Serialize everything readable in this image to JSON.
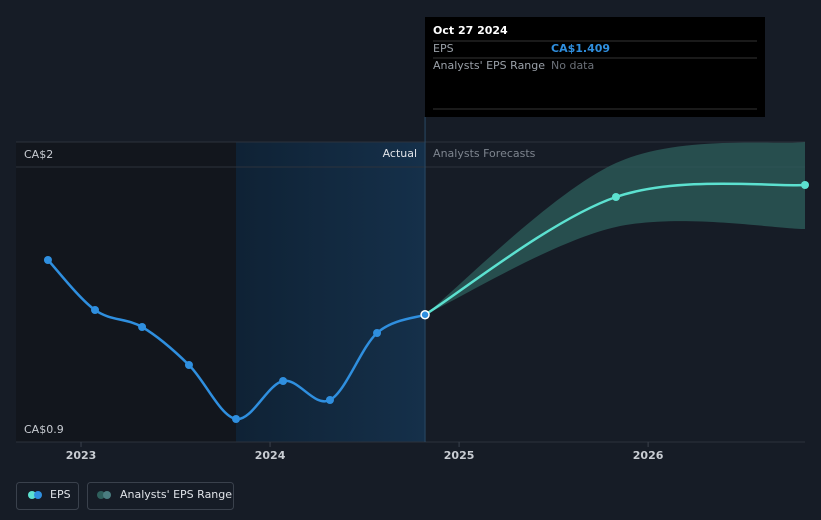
{
  "chart_data": {
    "type": "line",
    "xlim": [
      2022.656,
      2026.83
    ],
    "xticks": [
      2023,
      2024,
      2025,
      2026
    ],
    "ylim": [
      0.9,
      2.1
    ],
    "yticks": [
      {
        "value": 2,
        "label": "CA$2"
      },
      {
        "value": 0.9,
        "label": "CA$0.9"
      }
    ],
    "grid": true,
    "annotations": [
      "Actual",
      "Analysts Forecasts"
    ],
    "tooltip": {
      "date": "Oct 27 2024",
      "rows": [
        {
          "label": "EPS",
          "value": "CA$1.409"
        },
        {
          "label": "Analysts' EPS Range",
          "value": "No data"
        }
      ]
    },
    "series": [
      {
        "name": "EPS",
        "color": "#2f8fdf",
        "x": [
          2022.825,
          2023.074,
          2023.323,
          2023.571,
          2023.82,
          2024.069,
          2024.317,
          2024.566,
          2024.82
        ],
        "values": [
          1.628,
          1.428,
          1.36,
          1.208,
          0.992,
          1.144,
          1.068,
          1.336,
          1.409
        ],
        "forecast": {
          "color": "#5ce1d0",
          "x": [
            2024.82,
            2025.83,
            2026.83
          ],
          "values": [
            1.409,
            1.88,
            1.928
          ]
        }
      },
      {
        "name": "Analysts' EPS Range",
        "color": "#2e5f5c",
        "x": [
          2024.82,
          2025.83,
          2026.83
        ],
        "high": [
          1.409,
          2.016,
          2.1
        ],
        "low": [
          1.409,
          1.76,
          1.752
        ]
      }
    ]
  }
}
